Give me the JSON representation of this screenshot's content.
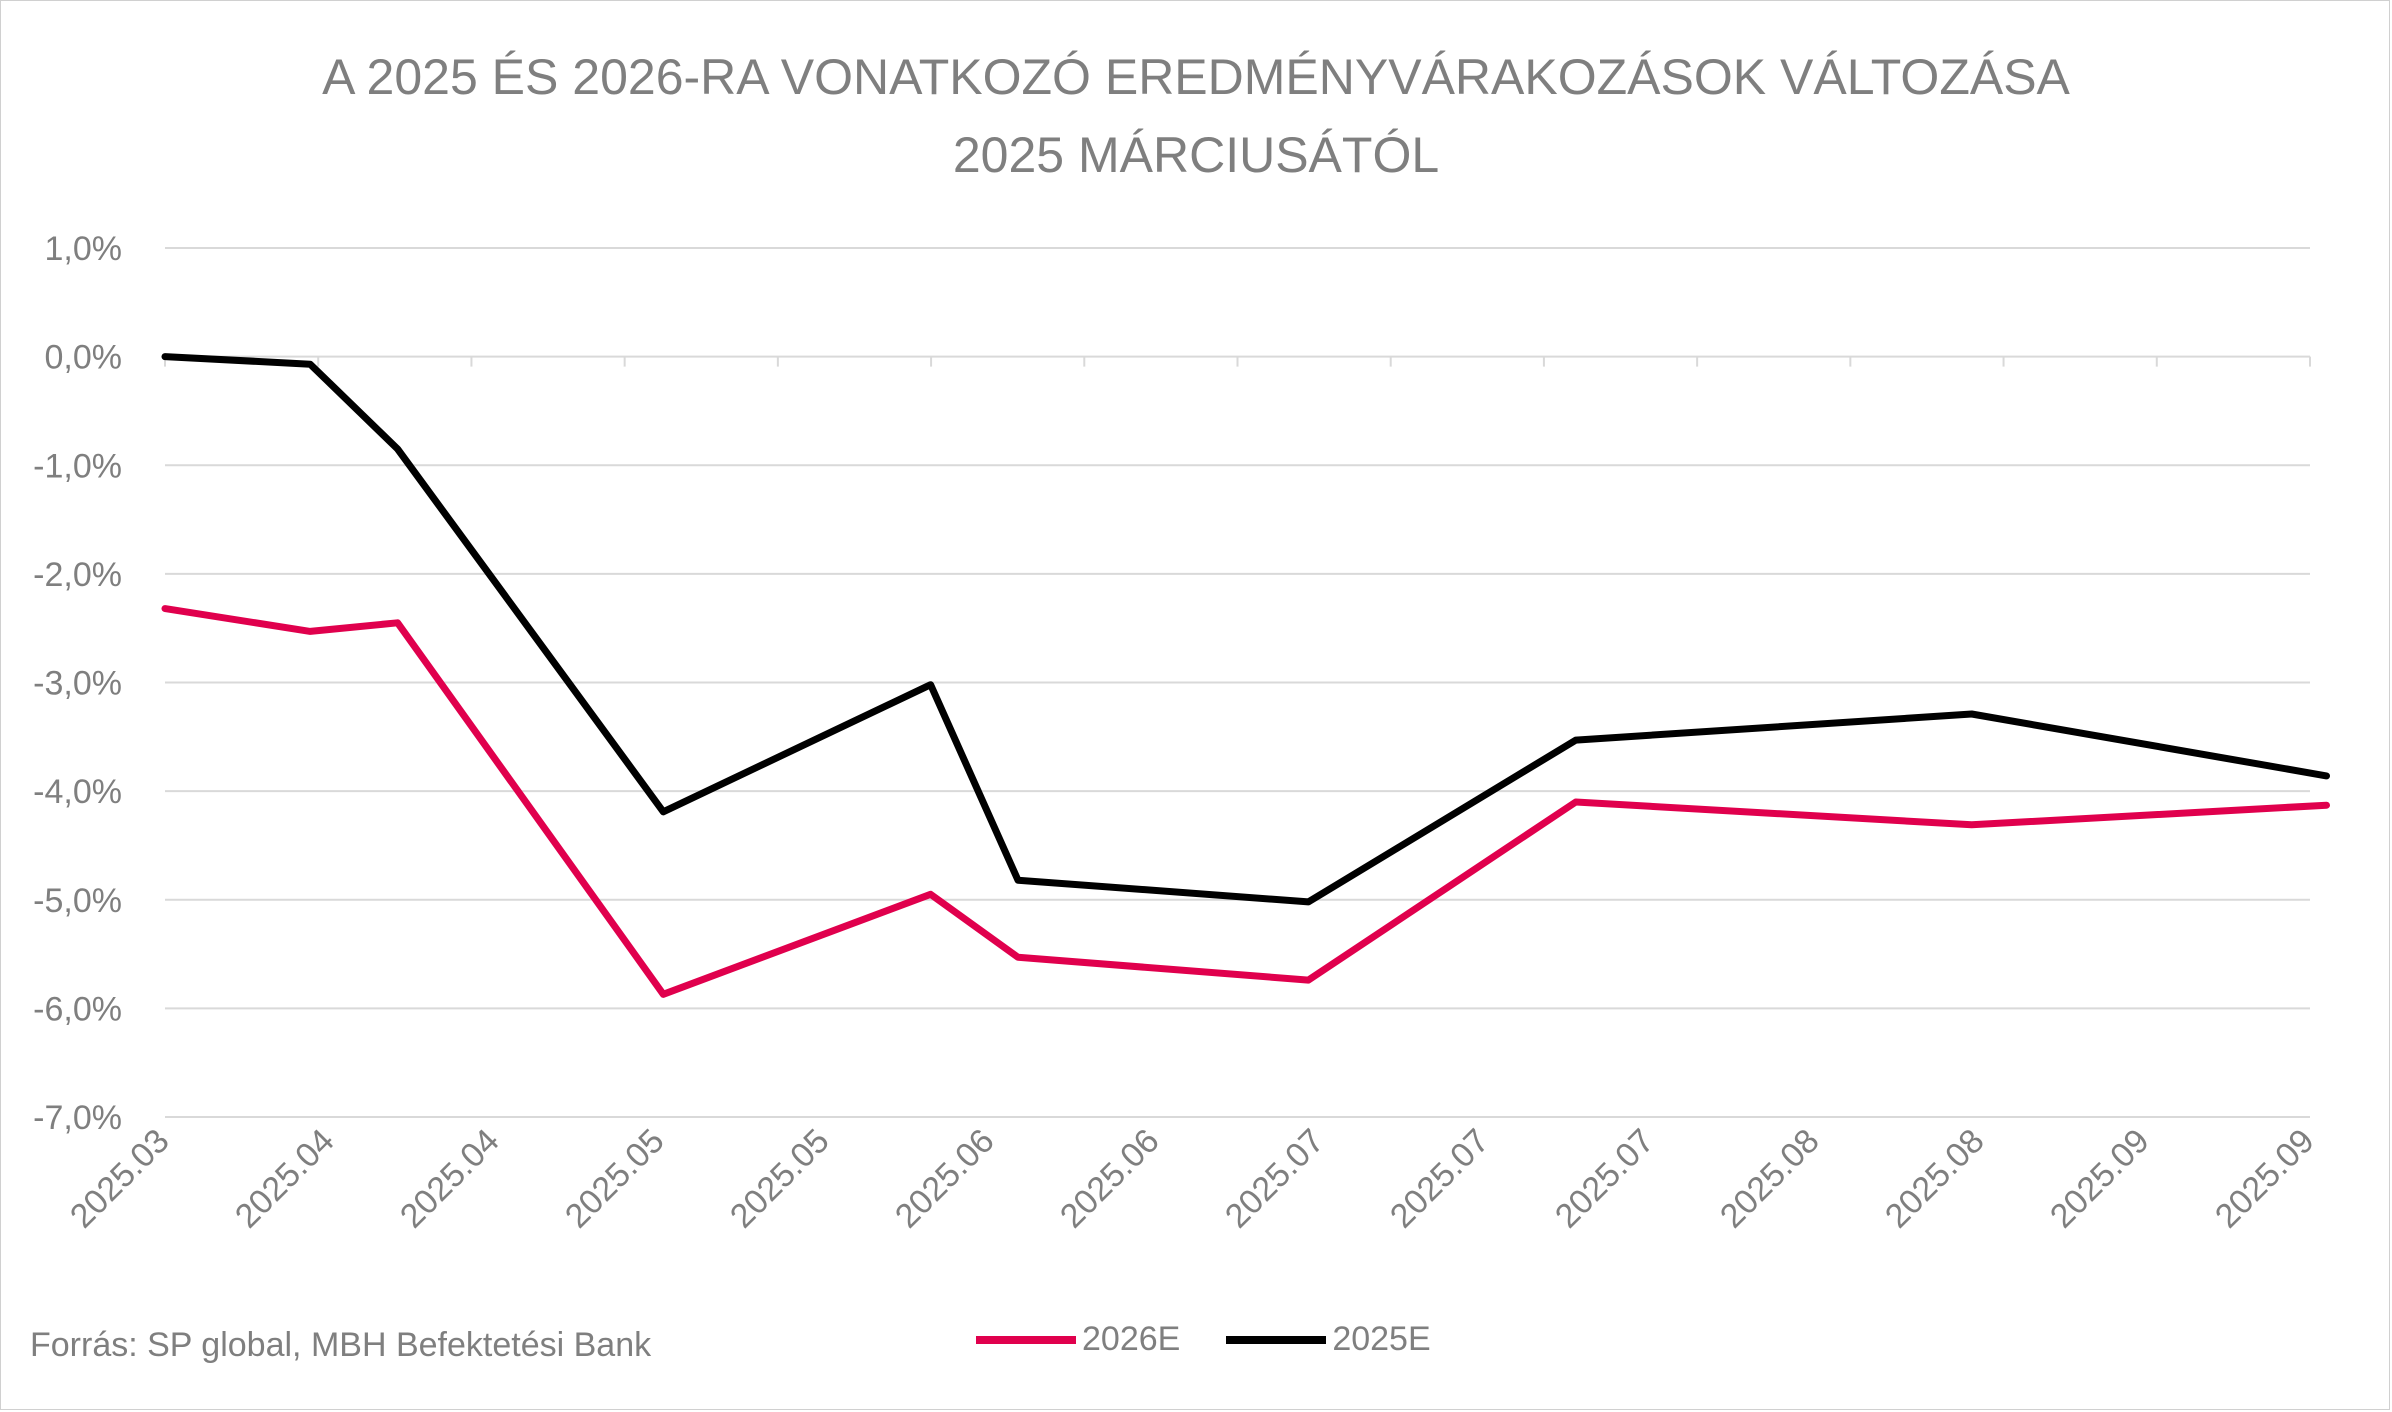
{
  "chart_data": {
    "type": "line",
    "title": "A 2025 ÉS 2026-RA VONATKOZÓ EREDMÉNYVÁRAKOZÁSOK VÁLTOZÁSA",
    "subtitle": "2025 MÁRCIUSÁTÓL",
    "xlabel": "",
    "ylabel": "",
    "ylim": [
      -7.0,
      1.0
    ],
    "yticks": [
      "1,0%",
      "0,0%",
      "-1,0%",
      "-2,0%",
      "-3,0%",
      "-4,0%",
      "-5,0%",
      "-6,0%",
      "-7,0%"
    ],
    "categories": [
      "2025.03",
      "2025.04",
      "2025.04",
      "2025.05",
      "2025.05",
      "2025.06",
      "2025.06",
      "2025.07",
      "2025.07",
      "2025.07",
      "2025.08",
      "2025.08",
      "2025.09",
      "2025.09"
    ],
    "grid": true,
    "legend_position": "bottom",
    "series": [
      {
        "name": "2026E",
        "color": "#e0004d",
        "points": [
          {
            "x": 0.0,
            "y": -2.32
          },
          {
            "x": 0.88,
            "y": -2.53
          },
          {
            "x": 1.41,
            "y": -2.45
          },
          {
            "x": 3.02,
            "y": -5.87
          },
          {
            "x": 4.64,
            "y": -4.95
          },
          {
            "x": 5.17,
            "y": -5.53
          },
          {
            "x": 6.93,
            "y": -5.74
          },
          {
            "x": 8.55,
            "y": -4.1
          },
          {
            "x": 10.95,
            "y": -4.31
          },
          {
            "x": 13.1,
            "y": -4.13
          }
        ]
      },
      {
        "name": "2025E",
        "color": "#000000",
        "points": [
          {
            "x": 0.0,
            "y": 0.0
          },
          {
            "x": 0.88,
            "y": -0.07
          },
          {
            "x": 1.41,
            "y": -0.85
          },
          {
            "x": 3.02,
            "y": -4.19
          },
          {
            "x": 4.64,
            "y": -3.02
          },
          {
            "x": 5.17,
            "y": -4.82
          },
          {
            "x": 6.93,
            "y": -5.02
          },
          {
            "x": 8.55,
            "y": -3.53
          },
          {
            "x": 10.95,
            "y": -3.29
          },
          {
            "x": 13.1,
            "y": -3.86
          }
        ]
      }
    ]
  },
  "source_text": "Forrás: SP global, MBH Befektetési Bank"
}
